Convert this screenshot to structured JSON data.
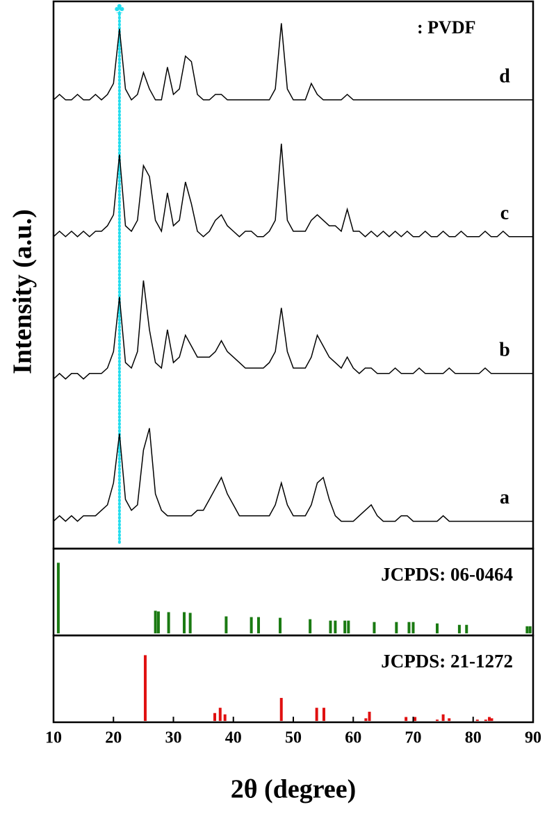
{
  "chart_data": [
    {
      "type": "line",
      "ylabel": "Intensity (a.u.)",
      "marker_symbol": "♣",
      "marker_label": ": PVDF",
      "marker_color": "#22ddee",
      "marker_x": 21,
      "xlim": [
        10,
        90
      ],
      "ylim": [
        0,
        100
      ],
      "x": [
        10,
        11,
        12,
        13,
        14,
        15,
        16,
        17,
        18,
        19,
        20,
        21,
        22,
        23,
        24,
        25,
        26,
        27,
        28,
        29,
        30,
        31,
        32,
        33,
        34,
        35,
        36,
        37,
        38,
        39,
        40,
        41,
        42,
        43,
        44,
        45,
        46,
        47,
        48,
        49,
        50,
        51,
        52,
        53,
        54,
        55,
        56,
        57,
        58,
        59,
        60,
        61,
        62,
        63,
        64,
        65,
        66,
        67,
        68,
        69,
        70,
        71,
        72,
        73,
        74,
        75,
        76,
        77,
        78,
        79,
        80,
        81,
        82,
        83,
        84,
        85,
        86,
        87,
        88,
        89,
        90
      ],
      "series": [
        {
          "name": "a",
          "color": "#000000",
          "values": [
            5,
            6,
            5,
            6,
            5,
            6,
            6,
            6,
            7,
            8,
            12,
            21,
            9,
            7,
            8,
            18,
            22,
            10,
            7,
            6,
            6,
            6,
            6,
            6,
            7,
            7,
            9,
            11,
            13,
            10,
            8,
            6,
            6,
            6,
            6,
            6,
            6,
            8,
            12,
            8,
            6,
            6,
            6,
            8,
            12,
            13,
            9,
            6,
            5,
            5,
            5,
            6,
            7,
            8,
            6,
            5,
            5,
            5,
            6,
            6,
            5,
            5,
            5,
            5,
            5,
            6,
            5,
            5,
            5,
            5,
            5,
            5,
            5,
            5,
            5,
            5,
            5,
            5,
            5,
            5,
            5
          ]
        },
        {
          "name": "b",
          "color": "#000000",
          "values": [
            31,
            32,
            31,
            32,
            32,
            31,
            32,
            32,
            32,
            33,
            36,
            46,
            34,
            33,
            36,
            49,
            40,
            34,
            33,
            40,
            34,
            35,
            39,
            37,
            35,
            35,
            35,
            36,
            38,
            36,
            35,
            34,
            33,
            33,
            33,
            33,
            34,
            36,
            44,
            36,
            33,
            33,
            33,
            35,
            39,
            37,
            35,
            34,
            33,
            35,
            33,
            32,
            33,
            33,
            32,
            32,
            32,
            33,
            32,
            32,
            32,
            33,
            32,
            32,
            32,
            32,
            33,
            32,
            32,
            32,
            32,
            32,
            33,
            32,
            32,
            32,
            32,
            32,
            32,
            32,
            32
          ]
        },
        {
          "name": "c",
          "color": "#000000",
          "values": [
            57,
            58,
            57,
            58,
            57,
            58,
            57,
            58,
            58,
            59,
            61,
            72,
            59,
            58,
            60,
            70,
            68,
            60,
            58,
            65,
            59,
            60,
            67,
            63,
            58,
            57,
            58,
            60,
            61,
            59,
            58,
            57,
            58,
            58,
            57,
            57,
            58,
            60,
            74,
            60,
            58,
            58,
            58,
            60,
            61,
            60,
            59,
            59,
            58,
            62,
            58,
            58,
            57,
            58,
            57,
            58,
            57,
            58,
            57,
            58,
            57,
            57,
            58,
            57,
            57,
            58,
            57,
            57,
            58,
            57,
            57,
            57,
            58,
            57,
            57,
            58,
            57,
            57,
            57,
            57,
            57
          ]
        },
        {
          "name": "d",
          "color": "#000000",
          "values": [
            82,
            83,
            82,
            82,
            83,
            82,
            82,
            83,
            82,
            83,
            85,
            95,
            84,
            82,
            83,
            87,
            84,
            82,
            82,
            88,
            83,
            84,
            90,
            89,
            83,
            82,
            82,
            83,
            83,
            82,
            82,
            82,
            82,
            82,
            82,
            82,
            82,
            84,
            96,
            84,
            82,
            82,
            82,
            85,
            83,
            82,
            82,
            82,
            82,
            83,
            82,
            82,
            82,
            82,
            82,
            82,
            82,
            82,
            82,
            82,
            82,
            82,
            82,
            82,
            82,
            82,
            82,
            82,
            82,
            82,
            82,
            82,
            82,
            82,
            82,
            82,
            82,
            82,
            82,
            82,
            82
          ]
        }
      ]
    },
    {
      "type": "stick",
      "title": "JCPDS: 06-0464",
      "color": "#1a7a12",
      "xlim": [
        10,
        90
      ],
      "ylim": [
        -3,
        120
      ],
      "x": [
        10.8,
        27.0,
        27.5,
        29.2,
        31.8,
        32.8,
        38.8,
        43.0,
        44.2,
        47.8,
        52.8,
        56.2,
        57.0,
        58.6,
        59.2,
        63.5,
        67.2,
        69.3,
        70.0,
        74.0,
        77.7,
        78.9,
        89.0,
        89.5
      ],
      "values": [
        100,
        32,
        31,
        30,
        30,
        29,
        24,
        23,
        23,
        22,
        20,
        18,
        18,
        18,
        18,
        16,
        16,
        16,
        16,
        14,
        12,
        12,
        10,
        10
      ]
    },
    {
      "type": "stick",
      "title": "JCPDS: 21-1272",
      "color": "#e01010",
      "xlim": [
        10,
        90
      ],
      "ylim": [
        -2,
        130
      ],
      "x": [
        25.3,
        36.9,
        37.8,
        38.6,
        48.0,
        53.9,
        55.1,
        62.1,
        62.7,
        68.8,
        70.3,
        74.0,
        75.0,
        76.0,
        80.7,
        82.1,
        82.7,
        83.1
      ],
      "values": [
        100,
        12,
        20,
        10,
        35,
        20,
        20,
        4,
        14,
        6,
        6,
        2,
        10,
        4,
        2,
        2,
        6,
        4
      ],
      "xticks": [
        10,
        20,
        30,
        40,
        50,
        60,
        70,
        80,
        90
      ],
      "xlabel": "2θ (degree)"
    }
  ]
}
